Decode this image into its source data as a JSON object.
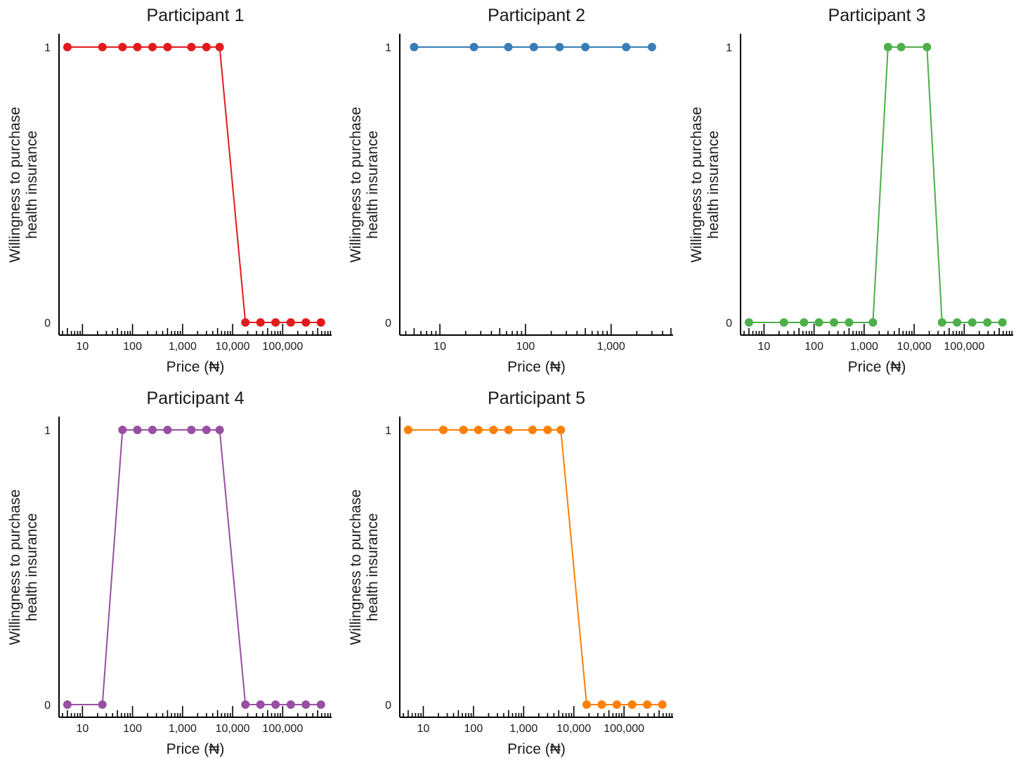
{
  "figure": {
    "y_axis_label_line1": "Willingness to purchase",
    "y_axis_label_line2": "health insurance",
    "x_axis_label": "Price (₦)"
  },
  "chart_data": [
    {
      "type": "line",
      "title": "Participant 1",
      "color": "#e31a1c",
      "xscale": "log",
      "xlim": [
        3.4,
        950000
      ],
      "ylim": [
        0,
        1
      ],
      "yticks": [
        0,
        1
      ],
      "xticks": [
        10,
        100,
        1000,
        10000,
        100000
      ],
      "xtick_labels": [
        "10",
        "100",
        "1,000",
        "10,000",
        "100,000"
      ],
      "xlabel": "Price (₦)",
      "ylabel": "Willingness to purchase health insurance",
      "x": [
        5,
        25,
        63,
        125,
        250,
        500,
        1500,
        3000,
        5500,
        18000,
        36000,
        72000,
        145000,
        290000,
        580000
      ],
      "y": [
        1,
        1,
        1,
        1,
        1,
        1,
        1,
        1,
        1,
        0,
        0,
        0,
        0,
        0,
        0
      ]
    },
    {
      "type": "line",
      "title": "Participant 2",
      "color": "#377eb8",
      "xscale": "log",
      "xlim": [
        3.4,
        5300
      ],
      "ylim": [
        0,
        1
      ],
      "yticks": [
        0,
        1
      ],
      "xticks": [
        10,
        100,
        1000
      ],
      "xtick_labels": [
        "10",
        "100",
        "1,000"
      ],
      "xlabel": "Price (₦)",
      "ylabel": "Willingness to purchase health insurance",
      "x": [
        5,
        25,
        63,
        125,
        250,
        500,
        1500,
        3000
      ],
      "y": [
        1,
        1,
        1,
        1,
        1,
        1,
        1,
        1
      ]
    },
    {
      "type": "line",
      "title": "Participant 3",
      "color": "#4daf4a",
      "xscale": "log",
      "xlim": [
        3.4,
        950000
      ],
      "ylim": [
        0,
        1
      ],
      "yticks": [
        0,
        1
      ],
      "xticks": [
        10,
        100,
        1000,
        10000,
        100000
      ],
      "xtick_labels": [
        "10",
        "100",
        "1,000",
        "10,000",
        "100,000"
      ],
      "xlabel": "Price (₦)",
      "ylabel": "Willingness to purchase health insurance",
      "x": [
        5,
        25,
        63,
        125,
        250,
        500,
        1500,
        3000,
        5500,
        18000,
        36000,
        72000,
        145000,
        290000,
        580000
      ],
      "y": [
        0,
        0,
        0,
        0,
        0,
        0,
        0,
        1,
        1,
        1,
        0,
        0,
        0,
        0,
        0
      ]
    },
    {
      "type": "line",
      "title": "Participant 4",
      "color": "#984ea3",
      "xscale": "log",
      "xlim": [
        3.4,
        950000
      ],
      "ylim": [
        0,
        1
      ],
      "yticks": [
        0,
        1
      ],
      "xticks": [
        10,
        100,
        1000,
        10000,
        100000
      ],
      "xtick_labels": [
        "10",
        "100",
        "1,000",
        "10,000",
        "100,000"
      ],
      "xlabel": "Price (₦)",
      "ylabel": "Willingness to purchase health insurance",
      "x": [
        5,
        25,
        63,
        125,
        250,
        500,
        1500,
        3000,
        5500,
        18000,
        36000,
        72000,
        145000,
        290000,
        580000
      ],
      "y": [
        0,
        0,
        1,
        1,
        1,
        1,
        1,
        1,
        1,
        0,
        0,
        0,
        0,
        0,
        0
      ]
    },
    {
      "type": "line",
      "title": "Participant 5",
      "color": "#ff7f00",
      "xscale": "log",
      "xlim": [
        3.4,
        950000
      ],
      "ylim": [
        0,
        1
      ],
      "yticks": [
        0,
        1
      ],
      "xticks": [
        10,
        100,
        1000,
        10000,
        100000
      ],
      "xtick_labels": [
        "10",
        "100",
        "1,000",
        "10,000",
        "100,000"
      ],
      "xlabel": "Price (₦)",
      "ylabel": "Willingness to purchase health insurance",
      "x": [
        5,
        25,
        63,
        125,
        250,
        500,
        1500,
        3000,
        5500,
        18000,
        36000,
        72000,
        145000,
        290000,
        580000
      ],
      "y": [
        1,
        1,
        1,
        1,
        1,
        1,
        1,
        1,
        1,
        0,
        0,
        0,
        0,
        0,
        0
      ]
    }
  ]
}
